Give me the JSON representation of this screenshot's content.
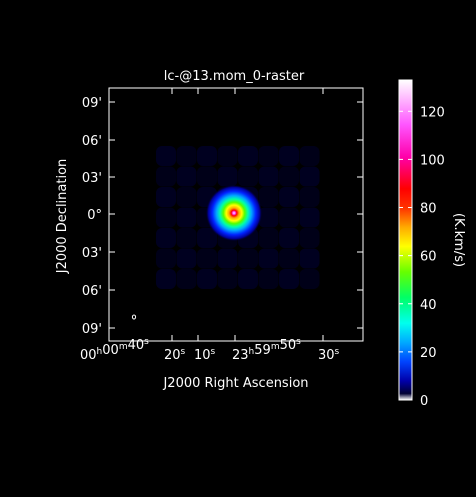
{
  "chart_data": {
    "type": "heatmap",
    "title": "lc-@13.mom_0-raster",
    "xlabel": "J2000 Right Ascension",
    "ylabel": "J2000 Declination",
    "colorbar_label": "(K.km/s)",
    "x_ticks": [
      {
        "label": "00h00m40s",
        "parts": [
          [
            "00",
            "h"
          ],
          [
            "00",
            "m"
          ],
          [
            "40",
            "s"
          ]
        ]
      },
      {
        "label": "20s",
        "parts": [
          [
            "20",
            "s"
          ]
        ]
      },
      {
        "label": "10s",
        "parts": [
          [
            "10",
            "s"
          ]
        ]
      },
      {
        "label": "23h59m50s",
        "parts": [
          [
            "23",
            "h"
          ],
          [
            "59",
            "m"
          ],
          [
            "50",
            "s"
          ]
        ]
      },
      {
        "label": "30s",
        "parts": [
          [
            "30",
            "s"
          ]
        ]
      }
    ],
    "y_ticks": [
      "09'",
      "06'",
      "03'",
      "0°",
      "03'",
      "06'",
      "09'"
    ],
    "colorbar_ticks": [
      0,
      20,
      40,
      60,
      80,
      100,
      120
    ],
    "color_range": [
      0,
      133
    ],
    "colormap": "rainbow",
    "peak_value": 133,
    "background_value": 2,
    "beam_marker": true
  }
}
